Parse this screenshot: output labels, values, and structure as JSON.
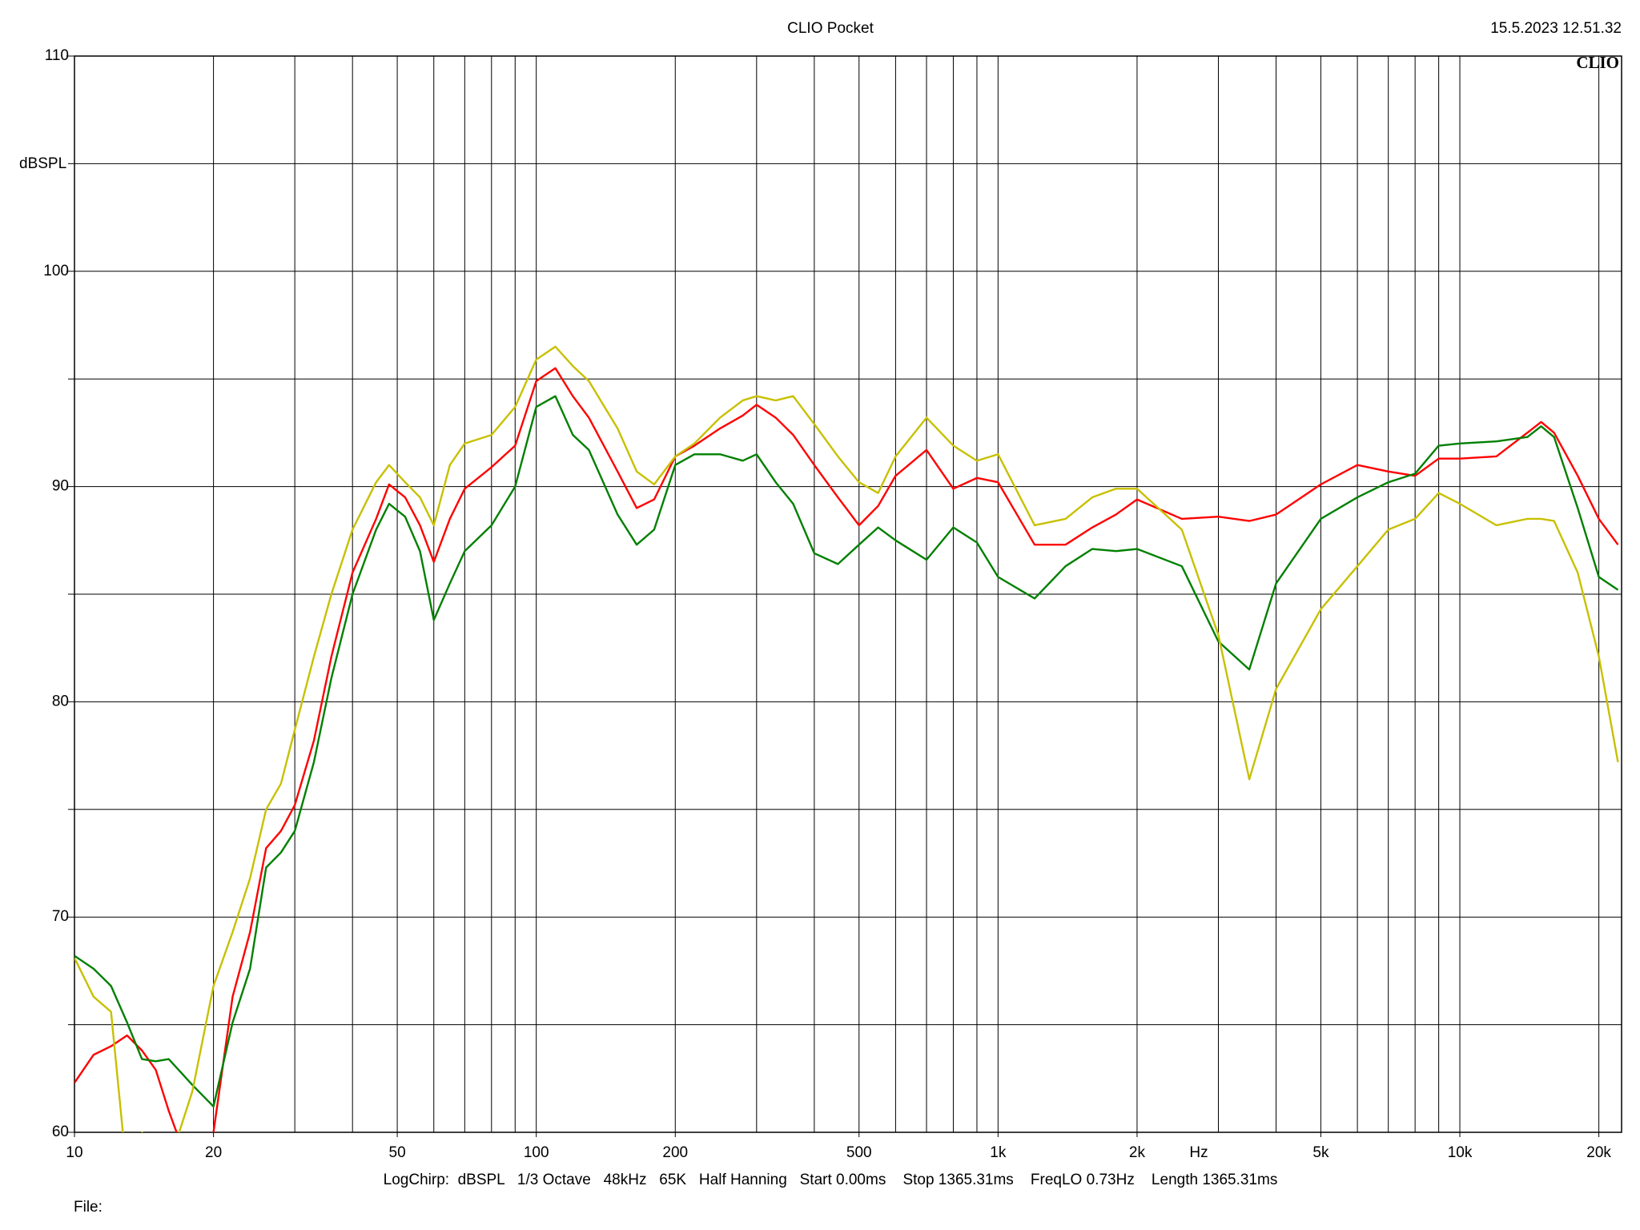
{
  "chart_data": {
    "type": "line",
    "title": "CLIO Pocket",
    "timestamp": "15.5.2023 12.51.32",
    "logo": "CLIO",
    "ylabel": "dBSPL",
    "xlabel": "Hz",
    "footer": "LogChirp:  dBSPL   1/3 Octave   48kHz   65K   Half Hanning   Start 0.00ms    Stop 1365.31ms    FreqLO 0.73Hz    Length 1365.31ms",
    "file_label": "File:",
    "xscale": "log",
    "grid": true,
    "xlim": [
      10,
      22400
    ],
    "ylim": [
      60,
      110
    ],
    "xticks": [
      10,
      20,
      50,
      100,
      200,
      500,
      {
        "value": 1000,
        "label": "1k"
      },
      {
        "value": 2000,
        "label": "2k"
      },
      {
        "value": 5000,
        "label": "5k"
      },
      {
        "value": 10000,
        "label": "10k"
      },
      {
        "value": 20000,
        "label": "20k"
      }
    ],
    "xminor_ticks": [
      30,
      40,
      60,
      70,
      80,
      90,
      300,
      400,
      600,
      700,
      800,
      900,
      3000,
      4000,
      6000,
      7000,
      8000,
      9000
    ],
    "yticks": [
      60,
      70,
      80,
      90,
      100,
      110
    ],
    "yminor_ticks": [
      65,
      75,
      85,
      95,
      105
    ],
    "x": [
      10,
      11,
      12,
      13,
      14,
      15,
      16,
      18,
      20,
      22,
      24,
      26,
      28,
      30,
      33,
      36,
      40,
      45,
      48,
      52,
      56,
      60,
      65,
      70,
      80,
      90,
      100,
      110,
      120,
      130,
      150,
      165,
      180,
      200,
      220,
      250,
      280,
      300,
      330,
      360,
      400,
      450,
      500,
      550,
      600,
      700,
      800,
      900,
      1000,
      1200,
      1400,
      1600,
      1800,
      2000,
      2500,
      3000,
      3500,
      4000,
      5000,
      6000,
      7000,
      8000,
      9000,
      10000,
      12000,
      14000,
      15000,
      16000,
      18000,
      20000,
      22000
    ],
    "series": [
      {
        "color": "#ff0000",
        "values": [
          62.3,
          63.6,
          64.0,
          64.5,
          63.8,
          62.9,
          61.0,
          58.0,
          60.0,
          66.3,
          69.3,
          73.2,
          74.0,
          75.2,
          78.2,
          82.1,
          86.0,
          88.5,
          90.1,
          89.5,
          88.2,
          86.5,
          88.5,
          89.9,
          90.9,
          91.9,
          94.9,
          95.5,
          94.2,
          93.2,
          90.7,
          89.0,
          89.4,
          91.4,
          91.9,
          92.7,
          93.3,
          93.8,
          93.2,
          92.4,
          91.0,
          89.5,
          88.2,
          89.1,
          90.5,
          91.7,
          89.9,
          90.4,
          90.2,
          87.3,
          87.3,
          88.1,
          88.7,
          89.4,
          88.5,
          88.6,
          88.4,
          88.7,
          90.1,
          91.0,
          90.7,
          90.5,
          91.3,
          91.3,
          91.4,
          92.5,
          93.0,
          92.5,
          90.5,
          88.5,
          87.3
        ]
      },
      {
        "color": "#008000",
        "values": [
          68.2,
          67.6,
          66.8,
          65.1,
          63.4,
          63.3,
          63.4,
          62.2,
          61.2,
          65.1,
          67.6,
          72.3,
          73.0,
          74.0,
          77.2,
          81.1,
          85.0,
          88.0,
          89.2,
          88.6,
          87.0,
          83.8,
          85.5,
          87.0,
          88.2,
          90.0,
          93.7,
          94.2,
          92.4,
          91.7,
          88.7,
          87.3,
          88.0,
          91.0,
          91.5,
          91.5,
          91.2,
          91.5,
          90.2,
          89.2,
          86.9,
          86.4,
          87.3,
          88.1,
          87.5,
          86.6,
          88.1,
          87.4,
          85.8,
          84.8,
          86.3,
          87.1,
          87.0,
          87.1,
          86.3,
          82.8,
          81.5,
          85.5,
          88.5,
          89.5,
          90.2,
          90.6,
          91.9,
          92.0,
          92.1,
          92.3,
          92.8,
          92.3,
          89.0,
          85.8,
          85.2
        ]
      },
      {
        "color": "#c8c000",
        "values": [
          68.1,
          66.3,
          65.6,
          58.0,
          60.0,
          59.5,
          58.5,
          61.9,
          66.8,
          69.3,
          71.8,
          75.0,
          76.2,
          78.7,
          82.1,
          85.0,
          88.0,
          90.2,
          91.0,
          90.2,
          89.5,
          88.2,
          91.0,
          92.0,
          92.4,
          93.7,
          95.9,
          96.5,
          95.6,
          94.9,
          92.7,
          90.7,
          90.1,
          91.4,
          92.0,
          93.2,
          94.0,
          94.2,
          94.0,
          94.2,
          92.9,
          91.4,
          90.2,
          89.7,
          91.4,
          93.2,
          91.9,
          91.2,
          91.5,
          88.2,
          88.5,
          89.5,
          89.9,
          89.9,
          88.0,
          83.1,
          76.4,
          80.6,
          84.3,
          86.3,
          88.0,
          88.5,
          89.7,
          89.2,
          88.2,
          88.5,
          88.5,
          88.4,
          86.0,
          82.1,
          77.2
        ]
      }
    ]
  }
}
